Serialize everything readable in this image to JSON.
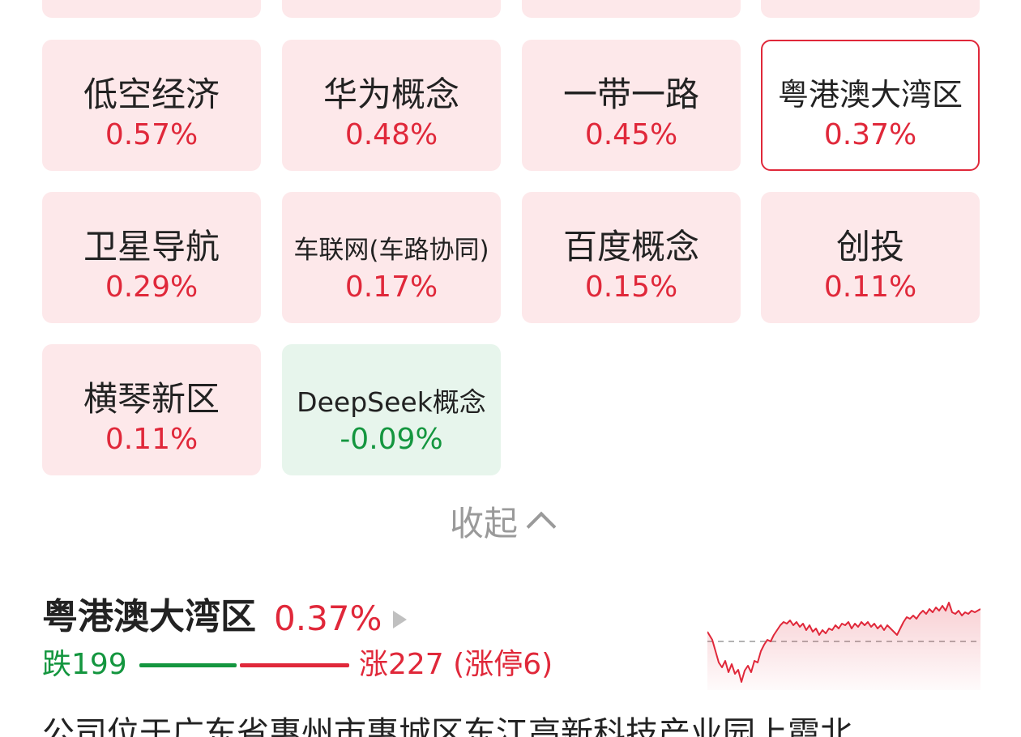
{
  "tiles_top_partial": 4,
  "tiles": [
    {
      "name": "低空经济",
      "pct": "0.57%",
      "dir": "up"
    },
    {
      "name": "华为概念",
      "pct": "0.48%",
      "dir": "up"
    },
    {
      "name": "一带一路",
      "pct": "0.45%",
      "dir": "up"
    },
    {
      "name": "粤港澳大湾区",
      "pct": "0.37%",
      "dir": "up",
      "selected": true
    },
    {
      "name": "卫星导航",
      "pct": "0.29%",
      "dir": "up"
    },
    {
      "name": "车联网(车路协同)",
      "pct": "0.17%",
      "dir": "up"
    },
    {
      "name": "百度概念",
      "pct": "0.15%",
      "dir": "up"
    },
    {
      "name": "创投",
      "pct": "0.11%",
      "dir": "up"
    },
    {
      "name": "横琴新区",
      "pct": "0.11%",
      "dir": "up"
    },
    {
      "name": "DeepSeek概念",
      "pct": "-0.09%",
      "dir": "down"
    }
  ],
  "collapse_label": "收起",
  "sector": {
    "title": "粤港澳大湾区",
    "pct": "0.37%",
    "fall_label": "跌199",
    "rise_label": "涨227 (涨停6)",
    "fall_count": 199,
    "rise_count": 227,
    "limit_up_count": 6,
    "description": "公司位于广东省惠州市惠城区东江高新科技产业园上霞北"
  },
  "colors": {
    "up": "#e0283a",
    "down": "#14963f",
    "up_bg": "#fde8ea",
    "down_bg": "#e7f5ec",
    "muted": "#9a9a9a"
  },
  "icons": {
    "collapse": "chevron-up-icon",
    "detail": "play-arrow-icon"
  }
}
